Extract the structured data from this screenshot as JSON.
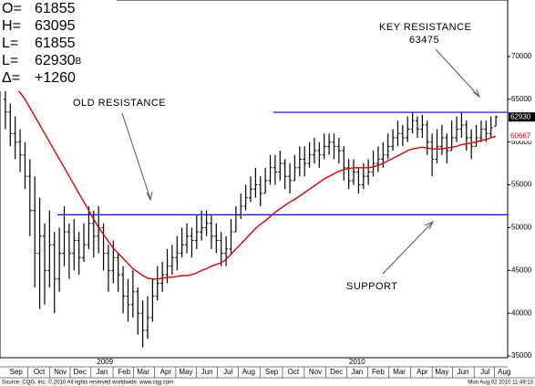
{
  "chart_data": {
    "type": "ohlc",
    "bar_color": "#000000",
    "open": [
      65000,
      63500,
      61000,
      60000,
      58500,
      56000,
      52000,
      47000,
      49000,
      45000,
      48000,
      44000,
      47000,
      49500,
      47000,
      48500,
      46500,
      48000,
      50500,
      49000,
      50000,
      47000,
      45000,
      46500,
      44500,
      42000,
      41000,
      42500,
      40000,
      38000,
      39500,
      42000,
      43500,
      44500,
      45500,
      46500,
      47000,
      48000,
      49000,
      48500,
      49500,
      50000,
      50500,
      49000,
      48500,
      47000,
      47500,
      49500,
      51500,
      52500,
      53500,
      54500,
      55000,
      54000,
      55500,
      57000,
      56500,
      57500,
      56000,
      55500,
      57000,
      58000,
      57500,
      58500,
      59000,
      58500,
      59500,
      60000,
      59500,
      59000,
      57000,
      55500,
      56500,
      55000,
      56000,
      56500,
      57500,
      58000,
      58500,
      59500,
      60500,
      61000,
      60500,
      61500,
      62500,
      61500,
      62000,
      60000,
      58000,
      59500,
      60500,
      59000,
      60500,
      61500,
      62000,
      60500,
      59500,
      60500,
      61500,
      61000,
      61855
    ],
    "high": [
      67000,
      64500,
      63000,
      61500,
      60000,
      58000,
      56000,
      53500,
      50500,
      52000,
      49500,
      50000,
      52500,
      50500,
      51000,
      49500,
      50500,
      52500,
      52000,
      52500,
      50500,
      48000,
      48500,
      47000,
      45500,
      44000,
      45000,
      43000,
      41500,
      42000,
      44000,
      45500,
      46000,
      47500,
      48000,
      49000,
      50000,
      50500,
      50000,
      51500,
      52000,
      52000,
      51500,
      50500,
      49500,
      49000,
      51000,
      52500,
      54000,
      55000,
      56000,
      57000,
      56000,
      57000,
      58500,
      58500,
      59000,
      58000,
      57500,
      58500,
      59500,
      59500,
      60000,
      60500,
      60000,
      61000,
      61000,
      61000,
      60500,
      59500,
      58000,
      58000,
      57000,
      57500,
      58000,
      59000,
      59500,
      60000,
      61000,
      61500,
      62500,
      62000,
      63000,
      63500,
      63000,
      63200,
      62500,
      61000,
      61500,
      62000,
      61000,
      62500,
      63000,
      63500,
      62500,
      61500,
      62000,
      62500,
      62500,
      63000,
      63095
    ],
    "low": [
      61500,
      59500,
      58000,
      56500,
      54500,
      49000,
      43000,
      40500,
      41000,
      43000,
      40000,
      42500,
      45500,
      44000,
      45000,
      44500,
      46000,
      47500,
      46500,
      47000,
      45000,
      42500,
      43500,
      42500,
      40000,
      39000,
      39500,
      37500,
      36000,
      37000,
      39000,
      41500,
      42500,
      43500,
      44500,
      45000,
      46500,
      47000,
      46500,
      47500,
      48500,
      49000,
      47500,
      47000,
      45500,
      45500,
      47000,
      49500,
      51000,
      52000,
      53000,
      53500,
      52500,
      54000,
      55000,
      55000,
      55500,
      54500,
      54000,
      55500,
      56000,
      56000,
      57000,
      57500,
      57000,
      58000,
      58500,
      58000,
      57500,
      55500,
      54500,
      55000,
      54000,
      54500,
      55000,
      56000,
      56500,
      57000,
      58000,
      59000,
      59500,
      59500,
      60000,
      61000,
      60500,
      60500,
      58500,
      56000,
      57500,
      58500,
      57500,
      59000,
      60000,
      60500,
      59000,
      58000,
      59500,
      60000,
      60000,
      60500,
      61855
    ],
    "close": [
      63500,
      61000,
      60000,
      58500,
      56000,
      52000,
      47000,
      49000,
      45000,
      48000,
      44000,
      47000,
      49500,
      47000,
      48500,
      46500,
      48000,
      50500,
      49000,
      50000,
      47000,
      45000,
      46500,
      44500,
      42000,
      41000,
      42500,
      40000,
      38000,
      39500,
      42000,
      43500,
      44500,
      45500,
      46500,
      47000,
      48000,
      49000,
      48500,
      49500,
      50000,
      50500,
      49000,
      48500,
      47000,
      47500,
      49500,
      51500,
      52500,
      53500,
      54500,
      55000,
      54000,
      55500,
      57000,
      56500,
      57500,
      56000,
      55500,
      57000,
      58000,
      57500,
      58500,
      59000,
      58500,
      59500,
      60000,
      59500,
      59000,
      57000,
      55500,
      56500,
      55000,
      56000,
      56500,
      57500,
      58000,
      58500,
      59500,
      60500,
      61000,
      60500,
      61500,
      62500,
      61500,
      62000,
      60000,
      58000,
      59500,
      60500,
      59000,
      60500,
      61500,
      62000,
      60500,
      59500,
      60500,
      61500,
      61000,
      61670,
      62930
    ],
    "moving_average": {
      "color": "#e00000",
      "values": [
        67000,
        66700,
        66300,
        65800,
        65000,
        64000,
        63000,
        62000,
        61000,
        60000,
        59000,
        58000,
        57000,
        56000,
        55000,
        54000,
        53000,
        52000,
        51000,
        50000,
        49200,
        48400,
        47600,
        47000,
        46400,
        45800,
        45200,
        44800,
        44400,
        44100,
        44000,
        44000,
        44100,
        44200,
        44200,
        44300,
        44400,
        44400,
        44500,
        44700,
        45000,
        45200,
        45500,
        45700,
        45900,
        46300,
        46900,
        47500,
        48100,
        48700,
        49300,
        49900,
        50400,
        50800,
        51300,
        51800,
        52200,
        52600,
        53000,
        53300,
        53700,
        54100,
        54500,
        54900,
        55300,
        55700,
        56000,
        56300,
        56600,
        56800,
        56900,
        57000,
        57000,
        57000,
        57000,
        57100,
        57300,
        57500,
        57800,
        58100,
        58400,
        58700,
        59000,
        59200,
        59300,
        59400,
        59300,
        59200,
        59200,
        59200,
        59300,
        59400,
        59500,
        59700,
        59800,
        59900,
        60000,
        60200,
        60300,
        60500,
        60667
      ]
    },
    "hlines": [
      {
        "value": 63475,
        "start": 54.6,
        "color": "#0000ff"
      },
      {
        "value": 51500,
        "start": 10.6,
        "color": "#0000ff"
      }
    ],
    "annotations": [
      "KEY RESISTANCE",
      "OLD RESISTANCE",
      "SUPPORT"
    ],
    "xlim": [
      -1.1,
      102.4
    ],
    "xticks": [
      {
        "value": 2.2,
        "label": "Sep"
      },
      {
        "value": 6.9,
        "label": "Oct"
      },
      {
        "value": 11.2,
        "label": "Nov"
      },
      {
        "value": 15.2,
        "label": "Dec"
      },
      {
        "value": 19.7,
        "label": "Jan"
      },
      {
        "value": 24.2,
        "label": "Feb"
      },
      {
        "value": 28.1,
        "label": "Mar"
      },
      {
        "value": 32.7,
        "label": "Apr"
      },
      {
        "value": 36.8,
        "label": "May"
      },
      {
        "value": 41.1,
        "label": "Jun"
      },
      {
        "value": 45.4,
        "label": "Jul"
      },
      {
        "value": 49.6,
        "label": "Aug"
      },
      {
        "value": 54.3,
        "label": "Sep"
      },
      {
        "value": 58.7,
        "label": "Oct"
      },
      {
        "value": 63.2,
        "label": "Nov"
      },
      {
        "value": 67.5,
        "label": "Dec"
      },
      {
        "value": 71.7,
        "label": "Jan"
      },
      {
        "value": 76.0,
        "label": "Feb"
      },
      {
        "value": 80.3,
        "label": "Mar"
      },
      {
        "value": 85.0,
        "label": "Apr"
      },
      {
        "value": 89.0,
        "label": "May"
      },
      {
        "value": 93.3,
        "label": "Jun"
      },
      {
        "value": 97.8,
        "label": "Jul"
      },
      {
        "value": 101.7,
        "label": "Aug"
      }
    ],
    "year_labels": [
      {
        "value": 20.3,
        "label": "2009"
      },
      {
        "value": 71.7,
        "label": "2010"
      }
    ],
    "ylim": [
      34800,
      76600
    ],
    "yticks": [
      35000,
      40000,
      45000,
      50000,
      55000,
      60000,
      65000,
      70000
    ],
    "quote_panel": {
      "labels": [
        "O=",
        "H=",
        "L=",
        "L=",
        "Δ="
      ],
      "last_flag": "B",
      "change": "+1260"
    }
  },
  "footer": {
    "source": "Source: CQG, Inc. © 2010 All rights reserved worldwide. www.cqg.com",
    "timestamp": "Mon Aug 02 2010 11:49:13"
  }
}
